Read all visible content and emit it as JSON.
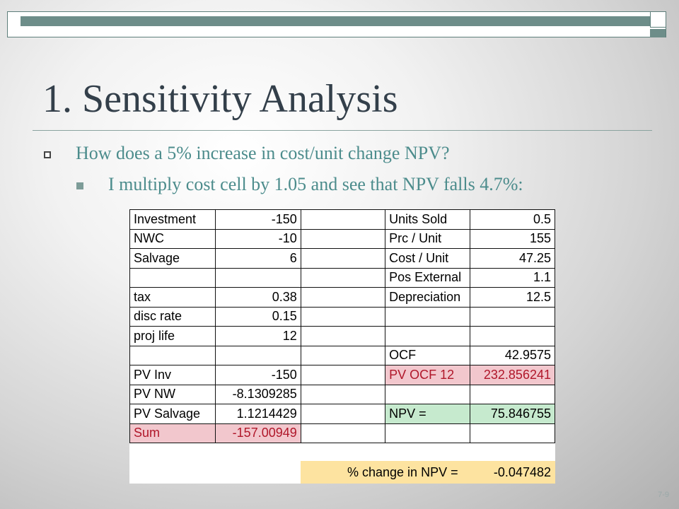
{
  "slide": {
    "title": "1. Sensitivity Analysis",
    "bullet_level1": "How does a 5% increase in cost/unit change NPV?",
    "bullet_level2": "I multiply cost cell by 1.05 and see that NPV falls 4.7%:",
    "slide_number": "7-9"
  },
  "table": {
    "rows": [
      {
        "a": "Investment",
        "b": "-150",
        "c": "",
        "d": "Units Sold",
        "e": "0.5"
      },
      {
        "a": "NWC",
        "b": "-10",
        "c": "",
        "d": "Prc / Unit",
        "e": "155"
      },
      {
        "a": "Salvage",
        "b": "6",
        "c": "",
        "d": "Cost / Unit",
        "e": "47.25"
      },
      {
        "a": "",
        "b": "",
        "c": "",
        "d": "Pos External",
        "e": "1.1"
      },
      {
        "a": "tax",
        "b": "0.38",
        "c": "",
        "d": "Depreciation",
        "e": "12.5"
      },
      {
        "a": "disc rate",
        "b": "0.15",
        "c": "",
        "d": "",
        "e": ""
      },
      {
        "a": "proj life",
        "b": "12",
        "c": "",
        "d": "",
        "e": ""
      },
      {
        "a": "",
        "b": "",
        "c": "",
        "d": "OCF",
        "e": "42.9575"
      },
      {
        "a": "PV Inv",
        "b": "-150",
        "c": "",
        "d": "PV OCF 12",
        "e": "232.856241"
      },
      {
        "a": "PV NW",
        "b": "-8.1309285",
        "c": "",
        "d": "",
        "e": ""
      },
      {
        "a": "PV Salvage",
        "b": "1.1214429",
        "c": "",
        "d": "NPV =",
        "e": "75.846755"
      },
      {
        "a": "Sum",
        "b": "-157.00949",
        "c": "",
        "d": "",
        "e": ""
      }
    ],
    "pct_change_label": "% change in NPV =",
    "pct_change_value": "-0.047482"
  },
  "colors": {
    "title": "#333f4a",
    "bullet_text": "#4c8c8c",
    "red_fill": "#f2c7cd",
    "red_text": "#b0172a",
    "green_fill": "#c6eace",
    "yellow_fill": "#fde3a0"
  }
}
